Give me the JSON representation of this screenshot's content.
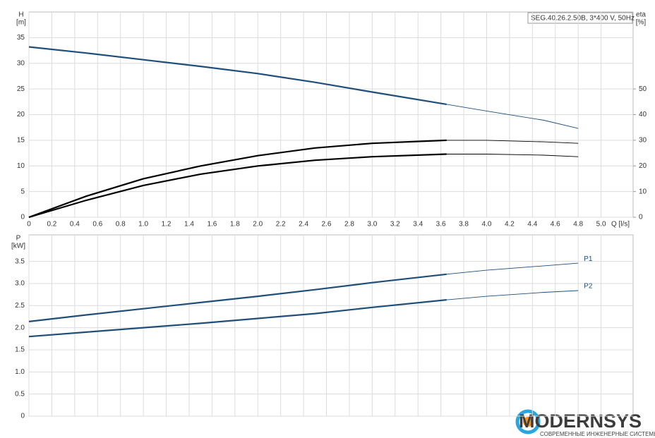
{
  "chart_data": [
    {
      "type": "line",
      "title": "SEG.40.26.2.50B, 3*400 V, 50Hz",
      "ylabel": "H",
      "yunit": "[m]",
      "y2label": "eta",
      "y2unit": "[%]",
      "xlabel": "Q [l/s]",
      "operating_limit": 3.65,
      "x": [
        0,
        0.5,
        1,
        1.5,
        2,
        2.5,
        3,
        3.65,
        4,
        4.5,
        4.8
      ],
      "series": [
        {
          "color": "#1f4e79",
          "values": [
            33.2,
            32.0,
            30.7,
            29.4,
            28.0,
            26.3,
            24.4,
            22.0,
            20.7,
            18.9,
            17.3
          ]
        },
        {
          "color": "#000000",
          "axis": "y2",
          "values": [
            0,
            8.2,
            15,
            20,
            24,
            27,
            28.8,
            30,
            30,
            29.4,
            28.8
          ]
        },
        {
          "color": "#000000",
          "axis": "y2",
          "values": [
            0,
            6.6,
            12.4,
            16.8,
            20,
            22.2,
            23.6,
            24.6,
            24.6,
            24.2,
            23.6
          ]
        }
      ],
      "xlim": [
        0,
        5.28
      ],
      "xticks": [
        0,
        0.2,
        0.4,
        0.6,
        0.8,
        {
          "value": 1,
          "label": "1.0"
        },
        1.2,
        1.4,
        1.6,
        1.8,
        {
          "value": 2,
          "label": "2.0"
        },
        2.2,
        2.4,
        2.6,
        2.8,
        {
          "value": 3,
          "label": "3.0"
        },
        3.2,
        3.4,
        3.6,
        3.8,
        {
          "value": 4,
          "label": "4.0"
        },
        4.2,
        4.4,
        4.6,
        4.8,
        {
          "value": 5,
          "label": "5.0"
        }
      ],
      "ylim": [
        0,
        40
      ],
      "yticks": [
        0,
        5,
        10,
        15,
        20,
        25,
        30,
        35
      ],
      "y2lim": [
        0,
        80
      ],
      "y2ticks": [
        0,
        10,
        20,
        30,
        40,
        50
      ],
      "grid": true
    },
    {
      "type": "line",
      "ylabel": "P",
      "yunit": "[kW]",
      "operating_limit": 3.65,
      "x": [
        0,
        0.5,
        1,
        1.5,
        2,
        2.5,
        3,
        3.65,
        4,
        4.5,
        4.8
      ],
      "series": [
        {
          "name": "P1",
          "color": "#1f4e79",
          "values": [
            2.14,
            2.29,
            2.43,
            2.57,
            2.71,
            2.86,
            3.02,
            3.21,
            3.3,
            3.4,
            3.46
          ]
        },
        {
          "name": "P2",
          "color": "#1f4e79",
          "values": [
            1.8,
            1.9,
            2.0,
            2.1,
            2.21,
            2.32,
            2.46,
            2.63,
            2.71,
            2.8,
            2.84
          ]
        }
      ],
      "xlim": [
        0,
        5.28
      ],
      "xticks": [
        0,
        0.2,
        0.4,
        0.6,
        0.8,
        1,
        1.2,
        1.4,
        1.6,
        1.8,
        2,
        2.2,
        2.4,
        2.6,
        2.8,
        3,
        3.2,
        3.4,
        3.6,
        3.8,
        4,
        4.2,
        4.4,
        4.6,
        4.8,
        5
      ],
      "ylim": [
        0,
        4.1
      ],
      "yticks": [
        0,
        0.5,
        {
          "value": 1,
          "label": "1.0"
        },
        1.5,
        {
          "value": 2,
          "label": "2.0"
        },
        2.5,
        {
          "value": 3,
          "label": "3.0"
        },
        3.5
      ],
      "grid": true
    }
  ],
  "logo": {
    "name": "MODERNSYS",
    "tagline": "СОВРЕМЕННЫЕ ИНЖЕНЕРНЫЕ СИСТЕМЫ"
  }
}
